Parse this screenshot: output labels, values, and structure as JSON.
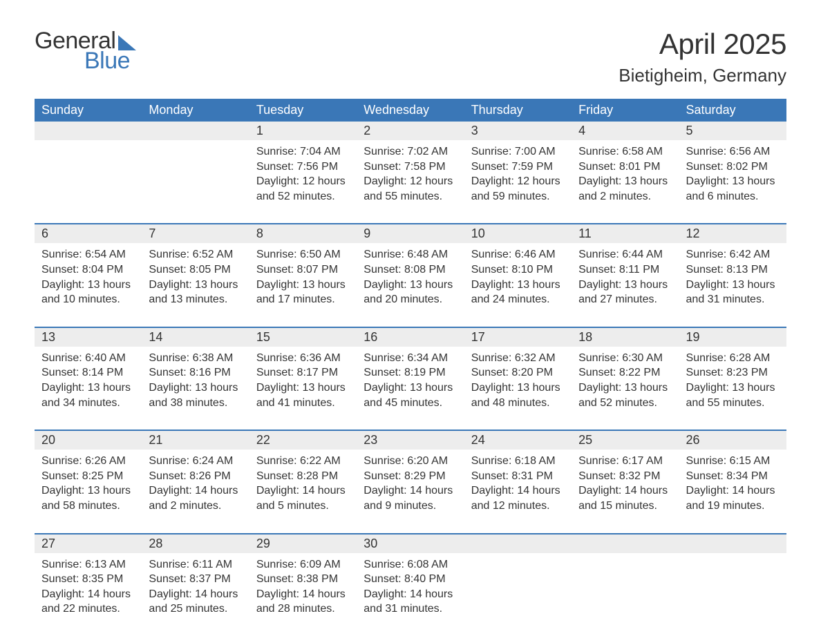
{
  "logo": {
    "word1": "General",
    "word2": "Blue"
  },
  "title": "April 2025",
  "location": "Bietigheim, Germany",
  "header_bg": "#3a77b7",
  "header_text_color": "#ffffff",
  "daynum_bg": "#ededed",
  "row_border_color": "#3a77b7",
  "page_bg": "#ffffff",
  "text_color": "#333333",
  "font_family": "Arial",
  "days": [
    "Sunday",
    "Monday",
    "Tuesday",
    "Wednesday",
    "Thursday",
    "Friday",
    "Saturday"
  ],
  "weeks": [
    {
      "nums": [
        "",
        "",
        "1",
        "2",
        "3",
        "4",
        "5"
      ],
      "cells": [
        null,
        null,
        {
          "sunrise": "Sunrise: 7:04 AM",
          "sunset": "Sunset: 7:56 PM",
          "dl1": "Daylight: 12 hours",
          "dl2": "and 52 minutes."
        },
        {
          "sunrise": "Sunrise: 7:02 AM",
          "sunset": "Sunset: 7:58 PM",
          "dl1": "Daylight: 12 hours",
          "dl2": "and 55 minutes."
        },
        {
          "sunrise": "Sunrise: 7:00 AM",
          "sunset": "Sunset: 7:59 PM",
          "dl1": "Daylight: 12 hours",
          "dl2": "and 59 minutes."
        },
        {
          "sunrise": "Sunrise: 6:58 AM",
          "sunset": "Sunset: 8:01 PM",
          "dl1": "Daylight: 13 hours",
          "dl2": "and 2 minutes."
        },
        {
          "sunrise": "Sunrise: 6:56 AM",
          "sunset": "Sunset: 8:02 PM",
          "dl1": "Daylight: 13 hours",
          "dl2": "and 6 minutes."
        }
      ]
    },
    {
      "nums": [
        "6",
        "7",
        "8",
        "9",
        "10",
        "11",
        "12"
      ],
      "cells": [
        {
          "sunrise": "Sunrise: 6:54 AM",
          "sunset": "Sunset: 8:04 PM",
          "dl1": "Daylight: 13 hours",
          "dl2": "and 10 minutes."
        },
        {
          "sunrise": "Sunrise: 6:52 AM",
          "sunset": "Sunset: 8:05 PM",
          "dl1": "Daylight: 13 hours",
          "dl2": "and 13 minutes."
        },
        {
          "sunrise": "Sunrise: 6:50 AM",
          "sunset": "Sunset: 8:07 PM",
          "dl1": "Daylight: 13 hours",
          "dl2": "and 17 minutes."
        },
        {
          "sunrise": "Sunrise: 6:48 AM",
          "sunset": "Sunset: 8:08 PM",
          "dl1": "Daylight: 13 hours",
          "dl2": "and 20 minutes."
        },
        {
          "sunrise": "Sunrise: 6:46 AM",
          "sunset": "Sunset: 8:10 PM",
          "dl1": "Daylight: 13 hours",
          "dl2": "and 24 minutes."
        },
        {
          "sunrise": "Sunrise: 6:44 AM",
          "sunset": "Sunset: 8:11 PM",
          "dl1": "Daylight: 13 hours",
          "dl2": "and 27 minutes."
        },
        {
          "sunrise": "Sunrise: 6:42 AM",
          "sunset": "Sunset: 8:13 PM",
          "dl1": "Daylight: 13 hours",
          "dl2": "and 31 minutes."
        }
      ]
    },
    {
      "nums": [
        "13",
        "14",
        "15",
        "16",
        "17",
        "18",
        "19"
      ],
      "cells": [
        {
          "sunrise": "Sunrise: 6:40 AM",
          "sunset": "Sunset: 8:14 PM",
          "dl1": "Daylight: 13 hours",
          "dl2": "and 34 minutes."
        },
        {
          "sunrise": "Sunrise: 6:38 AM",
          "sunset": "Sunset: 8:16 PM",
          "dl1": "Daylight: 13 hours",
          "dl2": "and 38 minutes."
        },
        {
          "sunrise": "Sunrise: 6:36 AM",
          "sunset": "Sunset: 8:17 PM",
          "dl1": "Daylight: 13 hours",
          "dl2": "and 41 minutes."
        },
        {
          "sunrise": "Sunrise: 6:34 AM",
          "sunset": "Sunset: 8:19 PM",
          "dl1": "Daylight: 13 hours",
          "dl2": "and 45 minutes."
        },
        {
          "sunrise": "Sunrise: 6:32 AM",
          "sunset": "Sunset: 8:20 PM",
          "dl1": "Daylight: 13 hours",
          "dl2": "and 48 minutes."
        },
        {
          "sunrise": "Sunrise: 6:30 AM",
          "sunset": "Sunset: 8:22 PM",
          "dl1": "Daylight: 13 hours",
          "dl2": "and 52 minutes."
        },
        {
          "sunrise": "Sunrise: 6:28 AM",
          "sunset": "Sunset: 8:23 PM",
          "dl1": "Daylight: 13 hours",
          "dl2": "and 55 minutes."
        }
      ]
    },
    {
      "nums": [
        "20",
        "21",
        "22",
        "23",
        "24",
        "25",
        "26"
      ],
      "cells": [
        {
          "sunrise": "Sunrise: 6:26 AM",
          "sunset": "Sunset: 8:25 PM",
          "dl1": "Daylight: 13 hours",
          "dl2": "and 58 minutes."
        },
        {
          "sunrise": "Sunrise: 6:24 AM",
          "sunset": "Sunset: 8:26 PM",
          "dl1": "Daylight: 14 hours",
          "dl2": "and 2 minutes."
        },
        {
          "sunrise": "Sunrise: 6:22 AM",
          "sunset": "Sunset: 8:28 PM",
          "dl1": "Daylight: 14 hours",
          "dl2": "and 5 minutes."
        },
        {
          "sunrise": "Sunrise: 6:20 AM",
          "sunset": "Sunset: 8:29 PM",
          "dl1": "Daylight: 14 hours",
          "dl2": "and 9 minutes."
        },
        {
          "sunrise": "Sunrise: 6:18 AM",
          "sunset": "Sunset: 8:31 PM",
          "dl1": "Daylight: 14 hours",
          "dl2": "and 12 minutes."
        },
        {
          "sunrise": "Sunrise: 6:17 AM",
          "sunset": "Sunset: 8:32 PM",
          "dl1": "Daylight: 14 hours",
          "dl2": "and 15 minutes."
        },
        {
          "sunrise": "Sunrise: 6:15 AM",
          "sunset": "Sunset: 8:34 PM",
          "dl1": "Daylight: 14 hours",
          "dl2": "and 19 minutes."
        }
      ]
    },
    {
      "nums": [
        "27",
        "28",
        "29",
        "30",
        "",
        "",
        ""
      ],
      "cells": [
        {
          "sunrise": "Sunrise: 6:13 AM",
          "sunset": "Sunset: 8:35 PM",
          "dl1": "Daylight: 14 hours",
          "dl2": "and 22 minutes."
        },
        {
          "sunrise": "Sunrise: 6:11 AM",
          "sunset": "Sunset: 8:37 PM",
          "dl1": "Daylight: 14 hours",
          "dl2": "and 25 minutes."
        },
        {
          "sunrise": "Sunrise: 6:09 AM",
          "sunset": "Sunset: 8:38 PM",
          "dl1": "Daylight: 14 hours",
          "dl2": "and 28 minutes."
        },
        {
          "sunrise": "Sunrise: 6:08 AM",
          "sunset": "Sunset: 8:40 PM",
          "dl1": "Daylight: 14 hours",
          "dl2": "and 31 minutes."
        },
        null,
        null,
        null
      ]
    }
  ]
}
